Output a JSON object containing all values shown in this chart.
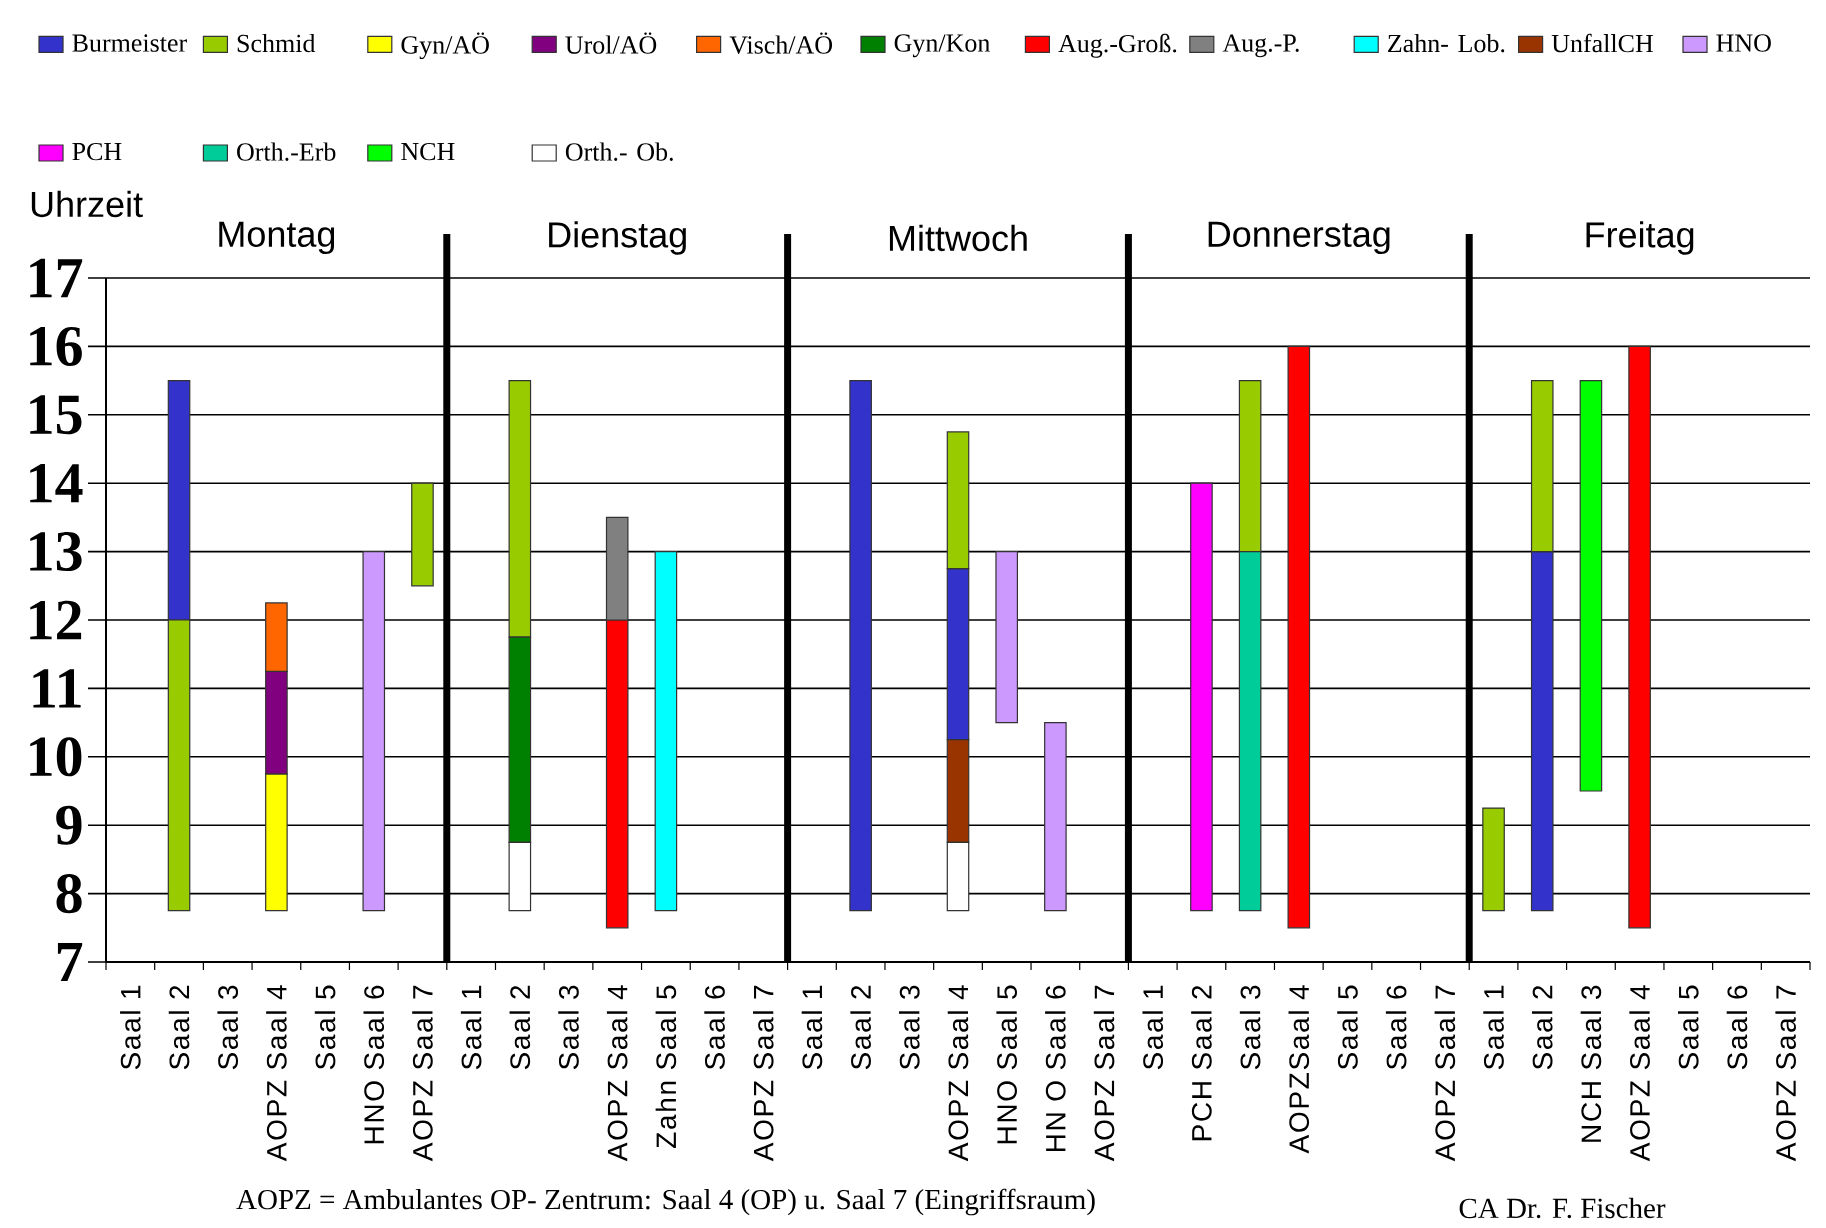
{
  "chart_data": {
    "type": "bar",
    "categories": [
      "Saal 1",
      "Saal 2",
      "Saal 3",
      "AOPZ Saal 4",
      "Saal 5",
      "HNO Saal 6",
      "AOPZ Saal 7",
      "Saal 1",
      "Saal 2",
      "Saal 3",
      "AOPZ Saal 4",
      "Zahn Saal 5",
      "Saal 6",
      "AOPZ Saal 7",
      "Saal 1",
      "Saal 2",
      "Saal 3",
      "AOPZ Saal 4",
      "HNO Saal 5",
      "HN O Saal 6",
      "AOPZ Saal 7",
      "Saal 1",
      "PCH Saal 2",
      "Saal 3",
      "AOPZSaal 4",
      "Saal 5",
      "Saal 6",
      "AOPZ Saal 7",
      "Saal 1",
      "Saal 2",
      "NCH Saal 3",
      "AOPZ Saal 4",
      "Saal 5",
      "Saal 6",
      "AOPZ Saal 7"
    ],
    "series": [
      {
        "name": "Burmeister",
        "color": "#3333cc",
        "values": [
          null,
          3.5,
          null,
          null,
          null,
          null,
          null,
          null,
          null,
          null,
          null,
          null,
          null,
          null,
          null,
          7.75,
          null,
          2.5,
          null,
          null,
          null,
          null,
          null,
          null,
          null,
          null,
          null,
          null,
          null,
          5.25,
          null,
          null,
          null,
          null,
          null
        ],
        "base": [
          null,
          12,
          null,
          null,
          null,
          null,
          null,
          null,
          null,
          null,
          null,
          null,
          null,
          null,
          null,
          7.75,
          null,
          10.25,
          null,
          null,
          null,
          null,
          null,
          null,
          null,
          null,
          null,
          null,
          null,
          7.75,
          null,
          null,
          null,
          null,
          null
        ]
      },
      {
        "name": "Schmid",
        "color": "#99cc00",
        "values": [
          null,
          4.25,
          null,
          null,
          null,
          null,
          1.5,
          null,
          3.75,
          null,
          null,
          null,
          null,
          null,
          null,
          null,
          null,
          2,
          null,
          null,
          null,
          null,
          null,
          2.5,
          null,
          null,
          null,
          null,
          1.5,
          2.5,
          null,
          null,
          null,
          null,
          null
        ],
        "base": [
          null,
          7.75,
          null,
          null,
          null,
          null,
          12.5,
          null,
          11.75,
          null,
          null,
          null,
          null,
          null,
          null,
          null,
          null,
          12.75,
          null,
          null,
          null,
          null,
          null,
          13,
          null,
          null,
          null,
          null,
          7.75,
          13,
          null,
          null,
          null,
          null,
          null
        ]
      },
      {
        "name": "Gyn/AÖ",
        "color": "#ffff00",
        "values": [
          null,
          null,
          null,
          2,
          null,
          null,
          null,
          null,
          null,
          null,
          null,
          null,
          null,
          null,
          null,
          null,
          null,
          null,
          null,
          null,
          null,
          null,
          null,
          null,
          null,
          null,
          null,
          null,
          null,
          null,
          null,
          null,
          null,
          null,
          null
        ],
        "base": [
          null,
          null,
          null,
          7.75,
          null,
          null,
          null,
          null,
          null,
          null,
          null,
          null,
          null,
          null,
          null,
          null,
          null,
          null,
          null,
          null,
          null,
          null,
          null,
          null,
          null,
          null,
          null,
          null,
          null,
          null,
          null,
          null,
          null,
          null,
          null
        ]
      },
      {
        "name": "Urol/AÖ",
        "color": "#800080",
        "values": [
          null,
          null,
          null,
          1.5,
          null,
          null,
          null,
          null,
          null,
          null,
          null,
          null,
          null,
          null,
          null,
          null,
          null,
          null,
          null,
          null,
          null,
          null,
          null,
          null,
          null,
          null,
          null,
          null,
          null,
          null,
          null,
          null,
          null,
          null,
          null
        ],
        "base": [
          null,
          null,
          null,
          9.75,
          null,
          null,
          null,
          null,
          null,
          null,
          null,
          null,
          null,
          null,
          null,
          null,
          null,
          null,
          null,
          null,
          null,
          null,
          null,
          null,
          null,
          null,
          null,
          null,
          null,
          null,
          null,
          null,
          null,
          null,
          null
        ]
      },
      {
        "name": "Visch/AÖ",
        "color": "#ff6600",
        "values": [
          null,
          null,
          null,
          1,
          null,
          null,
          null,
          null,
          null,
          null,
          null,
          null,
          null,
          null,
          null,
          null,
          null,
          null,
          null,
          null,
          null,
          null,
          null,
          null,
          null,
          null,
          null,
          null,
          null,
          null,
          null,
          null,
          null,
          null,
          null
        ],
        "base": [
          null,
          null,
          null,
          11.25,
          null,
          null,
          null,
          null,
          null,
          null,
          null,
          null,
          null,
          null,
          null,
          null,
          null,
          null,
          null,
          null,
          null,
          null,
          null,
          null,
          null,
          null,
          null,
          null,
          null,
          null,
          null,
          null,
          null,
          null,
          null
        ]
      },
      {
        "name": "Gyn/Kon",
        "color": "#008000",
        "values": [
          null,
          null,
          null,
          null,
          null,
          null,
          null,
          null,
          3,
          null,
          null,
          null,
          null,
          null,
          null,
          null,
          null,
          null,
          null,
          null,
          null,
          null,
          null,
          null,
          null,
          null,
          null,
          null,
          null,
          null,
          null,
          null,
          null,
          null,
          null
        ],
        "base": [
          null,
          null,
          null,
          null,
          null,
          null,
          null,
          null,
          8.75,
          null,
          null,
          null,
          null,
          null,
          null,
          null,
          null,
          null,
          null,
          null,
          null,
          null,
          null,
          null,
          null,
          null,
          null,
          null,
          null,
          null,
          null,
          null,
          null,
          null,
          null
        ]
      },
      {
        "name": "Aug.-Groß.",
        "color": "#ff0000",
        "values": [
          null,
          null,
          null,
          null,
          null,
          null,
          null,
          null,
          null,
          null,
          4.5,
          null,
          null,
          null,
          null,
          null,
          null,
          null,
          null,
          null,
          null,
          null,
          null,
          null,
          8.5,
          null,
          null,
          null,
          null,
          null,
          null,
          8.5,
          null,
          null,
          null
        ],
        "base": [
          null,
          null,
          null,
          null,
          null,
          null,
          null,
          null,
          null,
          null,
          7.5,
          null,
          null,
          null,
          null,
          null,
          null,
          null,
          null,
          null,
          null,
          null,
          null,
          null,
          7.5,
          null,
          null,
          null,
          null,
          null,
          null,
          7.5,
          null,
          null,
          null
        ]
      },
      {
        "name": "Aug.-P.",
        "color": "#808080",
        "values": [
          null,
          null,
          null,
          null,
          null,
          null,
          null,
          null,
          null,
          null,
          1.5,
          null,
          null,
          null,
          null,
          null,
          null,
          null,
          null,
          null,
          null,
          null,
          null,
          null,
          null,
          null,
          null,
          null,
          null,
          null,
          null,
          null,
          null,
          null,
          null
        ],
        "base": [
          null,
          null,
          null,
          null,
          null,
          null,
          null,
          null,
          null,
          null,
          12,
          null,
          null,
          null,
          null,
          null,
          null,
          null,
          null,
          null,
          null,
          null,
          null,
          null,
          null,
          null,
          null,
          null,
          null,
          null,
          null,
          null,
          null,
          null,
          null
        ]
      },
      {
        "name": "Zahn- Lob.",
        "color": "#00ffff",
        "values": [
          null,
          null,
          null,
          null,
          null,
          null,
          null,
          null,
          null,
          null,
          null,
          5.25,
          null,
          null,
          null,
          null,
          null,
          null,
          null,
          null,
          null,
          null,
          null,
          null,
          null,
          null,
          null,
          null,
          null,
          null,
          null,
          null,
          null,
          null,
          null
        ],
        "base": [
          null,
          null,
          null,
          null,
          null,
          null,
          null,
          null,
          null,
          null,
          null,
          7.75,
          null,
          null,
          null,
          null,
          null,
          null,
          null,
          null,
          null,
          null,
          null,
          null,
          null,
          null,
          null,
          null,
          null,
          null,
          null,
          null,
          null,
          null,
          null
        ]
      },
      {
        "name": "UnfallCH",
        "color": "#993300",
        "values": [
          null,
          null,
          null,
          null,
          null,
          null,
          null,
          null,
          null,
          null,
          null,
          null,
          null,
          null,
          null,
          null,
          null,
          1.5,
          null,
          null,
          null,
          null,
          null,
          null,
          null,
          null,
          null,
          null,
          null,
          null,
          null,
          null,
          null,
          null,
          null
        ],
        "base": [
          null,
          null,
          null,
          null,
          null,
          null,
          null,
          null,
          null,
          null,
          null,
          null,
          null,
          null,
          null,
          null,
          null,
          8.75,
          null,
          null,
          null,
          null,
          null,
          null,
          null,
          null,
          null,
          null,
          null,
          null,
          null,
          null,
          null,
          null,
          null
        ]
      },
      {
        "name": "HNO",
        "color": "#cc99ff",
        "values": [
          null,
          null,
          null,
          null,
          null,
          5.25,
          null,
          null,
          null,
          null,
          null,
          null,
          null,
          null,
          null,
          null,
          null,
          null,
          2.5,
          2.75,
          null,
          null,
          null,
          null,
          null,
          null,
          null,
          null,
          null,
          null,
          null,
          null,
          null,
          null,
          null
        ],
        "base": [
          null,
          null,
          null,
          null,
          null,
          7.75,
          null,
          null,
          null,
          null,
          null,
          null,
          null,
          null,
          null,
          null,
          null,
          null,
          10.5,
          7.75,
          null,
          null,
          null,
          null,
          null,
          null,
          null,
          null,
          null,
          null,
          null,
          null,
          null,
          null,
          null
        ]
      },
      {
        "name": "PCH",
        "color": "#ff00ff",
        "values": [
          null,
          null,
          null,
          null,
          null,
          null,
          null,
          null,
          null,
          null,
          null,
          null,
          null,
          null,
          null,
          null,
          null,
          null,
          null,
          null,
          null,
          null,
          6.25,
          null,
          null,
          null,
          null,
          null,
          null,
          null,
          null,
          null,
          null,
          null,
          null
        ],
        "base": [
          null,
          null,
          null,
          null,
          null,
          null,
          null,
          null,
          null,
          null,
          null,
          null,
          null,
          null,
          null,
          null,
          null,
          null,
          null,
          null,
          null,
          null,
          7.75,
          null,
          null,
          null,
          null,
          null,
          null,
          null,
          null,
          null,
          null,
          null,
          null
        ]
      },
      {
        "name": "Orth.-Erb",
        "color": "#00cc99",
        "values": [
          null,
          null,
          null,
          null,
          null,
          null,
          null,
          null,
          null,
          null,
          null,
          null,
          null,
          null,
          null,
          null,
          null,
          null,
          null,
          null,
          null,
          null,
          null,
          5.25,
          null,
          null,
          null,
          null,
          null,
          null,
          null,
          null,
          null,
          null,
          null
        ],
        "base": [
          null,
          null,
          null,
          null,
          null,
          null,
          null,
          null,
          null,
          null,
          null,
          null,
          null,
          null,
          null,
          null,
          null,
          null,
          null,
          null,
          null,
          null,
          null,
          7.75,
          null,
          null,
          null,
          null,
          null,
          null,
          null,
          null,
          null,
          null,
          null
        ]
      },
      {
        "name": "NCH",
        "color": "#00ff00",
        "values": [
          null,
          null,
          null,
          null,
          null,
          null,
          null,
          null,
          null,
          null,
          null,
          null,
          null,
          null,
          null,
          null,
          null,
          null,
          null,
          null,
          null,
          null,
          null,
          null,
          null,
          null,
          null,
          null,
          null,
          null,
          6,
          null,
          null,
          null,
          null
        ],
        "base": [
          null,
          null,
          null,
          null,
          null,
          null,
          null,
          null,
          null,
          null,
          null,
          null,
          null,
          null,
          null,
          null,
          null,
          null,
          null,
          null,
          null,
          null,
          null,
          null,
          null,
          null,
          null,
          null,
          null,
          null,
          9.5,
          null,
          null,
          null,
          null
        ]
      },
      {
        "name": "Orth.- Ob.",
        "color": "#ffffff",
        "values": [
          null,
          null,
          null,
          null,
          null,
          null,
          null,
          null,
          1,
          null,
          null,
          null,
          null,
          null,
          null,
          null,
          null,
          1,
          null,
          null,
          null,
          null,
          null,
          null,
          null,
          null,
          null,
          null,
          null,
          null,
          null,
          null,
          null,
          null,
          null
        ],
        "base": [
          null,
          null,
          null,
          null,
          null,
          null,
          null,
          null,
          7.75,
          null,
          null,
          null,
          null,
          null,
          null,
          null,
          null,
          7.75,
          null,
          null,
          null,
          null,
          null,
          null,
          null,
          null,
          null,
          null,
          null,
          null,
          null,
          null,
          null,
          null,
          null
        ]
      }
    ],
    "ylim": [
      7,
      17
    ],
    "yticks": [
      7,
      8,
      9,
      10,
      11,
      12,
      13,
      14,
      15,
      16,
      17
    ],
    "ylabel": "Uhrzeit",
    "grid": "y",
    "legend": "top",
    "annotations": [
      "Montag",
      "Dienstag",
      "Mittwoch",
      "Donnerstag",
      "Freitag",
      "AOPZ = Ambulantes OP- Zentrum: Saal 4 (OP) u. Saal 7 (Eingriffsraum)",
      "CA Dr. F. Fischer"
    ]
  }
}
